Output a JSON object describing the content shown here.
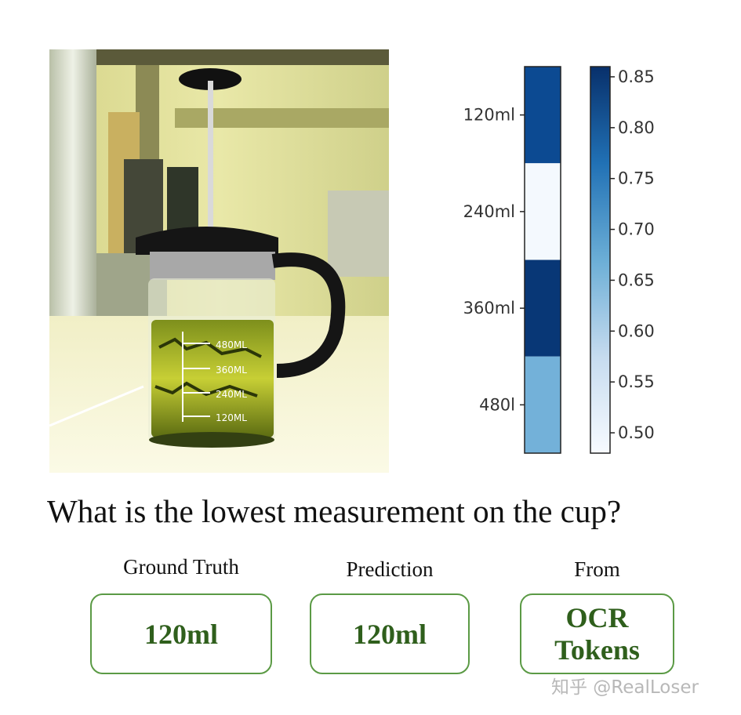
{
  "photo": {
    "cup_markings": [
      "480ML",
      "360ML",
      "240ML",
      "120ML"
    ]
  },
  "chart_data": {
    "type": "heatmap",
    "categories": [
      "120ml",
      "240ml",
      "360ml",
      "480l"
    ],
    "values": [
      0.81,
      0.49,
      0.86,
      0.64
    ],
    "colorbar": {
      "min": 0.48,
      "max": 0.86,
      "ticks": [
        "0.85",
        "0.80",
        "0.75",
        "0.70",
        "0.65",
        "0.60",
        "0.55",
        "0.50"
      ],
      "colormap": "Blues"
    },
    "colors": {
      "120ml": "#0c4a92",
      "240ml": "#f4f9fe",
      "360ml": "#083776",
      "480l": "#73b1d9"
    }
  },
  "question": "What is the lowest measurement on the cup?",
  "ground_truth": {
    "title": "Ground Truth",
    "value": "120ml"
  },
  "prediction": {
    "title": "Prediction",
    "value": "120ml"
  },
  "source": {
    "title": "From",
    "value_line1": "OCR",
    "value_line2": "Tokens"
  },
  "watermark": "知乎 @RealLoser",
  "accent_color": "#5b9a45"
}
